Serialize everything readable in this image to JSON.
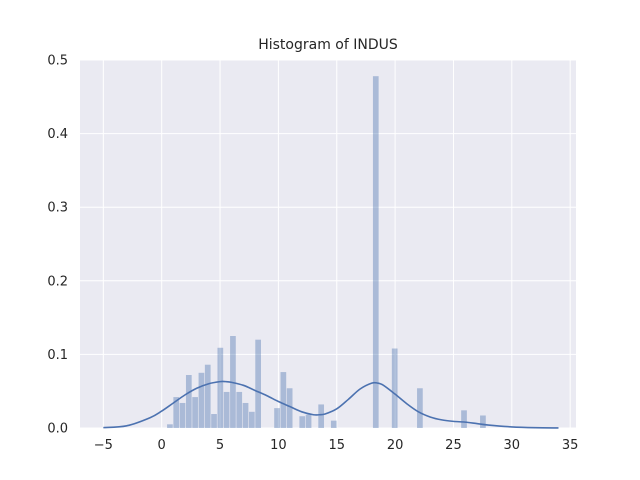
{
  "chart_data": {
    "type": "bar",
    "title": "Histogram of INDUS",
    "xlabel": "",
    "ylabel": "",
    "xlim": [
      -7,
      35.5
    ],
    "ylim": [
      0,
      0.5
    ],
    "xticks": [
      -5,
      0,
      5,
      10,
      15,
      20,
      25,
      30,
      35
    ],
    "yticks": [
      0.0,
      0.1,
      0.2,
      0.3,
      0.4,
      0.5
    ],
    "xtick_labels": [
      "−5",
      "0",
      "5",
      "10",
      "15",
      "20",
      "25",
      "30",
      "35"
    ],
    "ytick_labels": [
      "0.0",
      "0.1",
      "0.2",
      "0.3",
      "0.4",
      "0.5"
    ],
    "grid": true,
    "bin_width": 0.54,
    "histogram": {
      "bin_left": [
        0.46,
        1.0,
        1.54,
        2.08,
        2.62,
        3.16,
        3.7,
        4.24,
        4.78,
        5.32,
        5.86,
        6.4,
        6.94,
        7.48,
        8.02,
        8.56,
        9.64,
        10.18,
        10.72,
        11.8,
        12.34,
        13.42,
        14.5,
        18.1,
        19.72,
        21.88,
        25.66,
        27.28
      ],
      "density": [
        0.005,
        0.042,
        0.034,
        0.072,
        0.042,
        0.075,
        0.086,
        0.019,
        0.109,
        0.049,
        0.125,
        0.049,
        0.034,
        0.022,
        0.12,
        0.0,
        0.027,
        0.076,
        0.054,
        0.016,
        0.018,
        0.032,
        0.01,
        0.478,
        0.108,
        0.054,
        0.024,
        0.017
      ]
    },
    "kde": {
      "x": [
        -5.0,
        -3.0,
        -1.0,
        0.0,
        1.0,
        2.0,
        3.0,
        4.0,
        5.0,
        5.5,
        6.0,
        7.0,
        8.0,
        9.0,
        10.0,
        11.0,
        12.0,
        13.0,
        13.5,
        14.0,
        15.0,
        16.0,
        17.0,
        18.0,
        18.5,
        19.0,
        20.0,
        21.0,
        22.0,
        23.0,
        24.0,
        25.0,
        26.0,
        27.0,
        28.0,
        30.0,
        32.0,
        34.0
      ],
      "y": [
        0.0005,
        0.003,
        0.014,
        0.023,
        0.034,
        0.045,
        0.054,
        0.06,
        0.063,
        0.063,
        0.062,
        0.058,
        0.051,
        0.044,
        0.036,
        0.029,
        0.022,
        0.018,
        0.018,
        0.019,
        0.026,
        0.039,
        0.053,
        0.061,
        0.061,
        0.058,
        0.046,
        0.033,
        0.022,
        0.015,
        0.011,
        0.009,
        0.008,
        0.006,
        0.004,
        0.0015,
        0.0004,
        0.0001
      ]
    },
    "colors": {
      "background": "#eaeaf2",
      "grid": "#ffffff",
      "bar": "#4c72b0",
      "bar_opacity": 0.4,
      "kde_line": "#4c72b0",
      "text": "#262626"
    }
  }
}
